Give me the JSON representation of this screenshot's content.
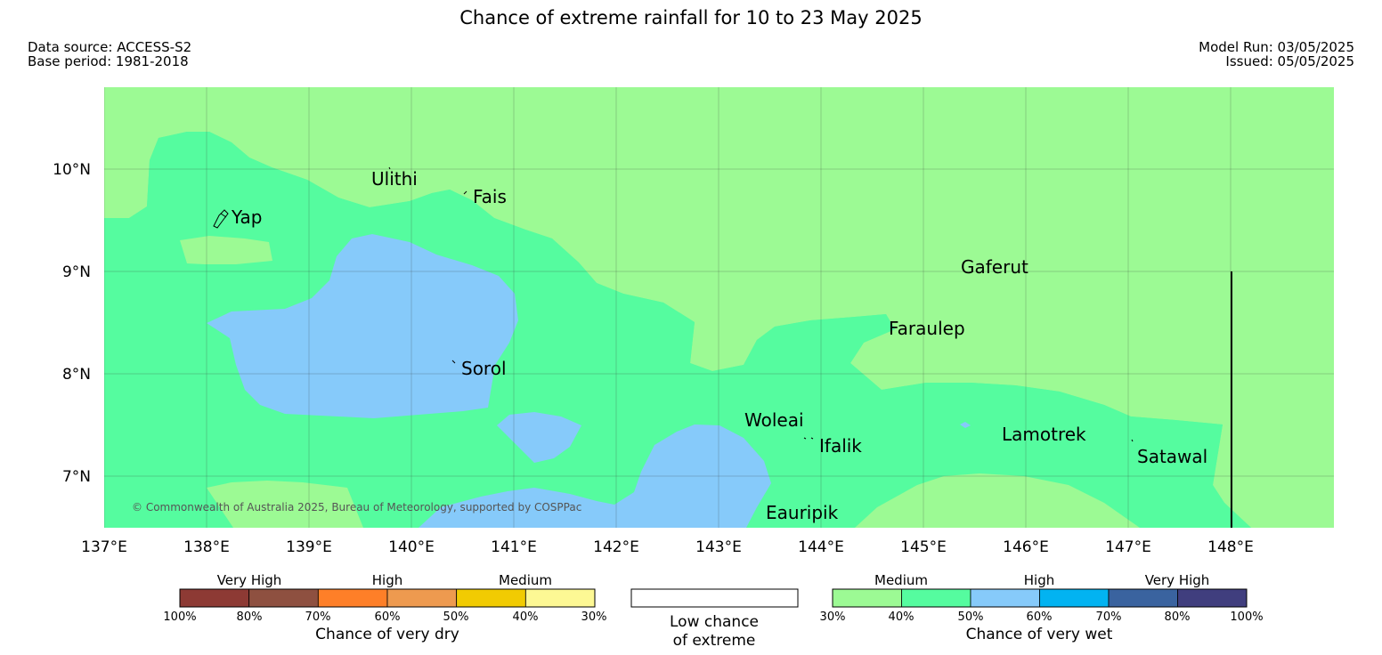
{
  "header": {
    "title": "Chance of extreme rainfall for 10 to 23 May 2025",
    "data_source": "Data source: ACCESS-S2",
    "base_period": "Base period: 1981-2018",
    "model_run": "Model Run: 03/05/2025",
    "issued": "Issued: 05/05/2025"
  },
  "map": {
    "lat_labels": [
      "10°N",
      "9°N",
      "8°N",
      "7°N"
    ],
    "lon_labels": [
      "137°E",
      "138°E",
      "139°E",
      "140°E",
      "141°E",
      "142°E",
      "143°E",
      "144°E",
      "145°E",
      "146°E",
      "147°E",
      "148°E"
    ],
    "places": [
      "Ulithi",
      "Fais",
      "Yap",
      "Gaferut",
      "Faraulep",
      "Sorol",
      "Woleai",
      "Ifalik",
      "Lamotrek",
      "Satawal",
      "Eauripik"
    ],
    "copyright": "© Commonwealth of Australia 2025, Bureau of Meteorology, supported by COSPPac",
    "fill_colors": {
      "wet_30_40": "#9cfa94",
      "wet_40_50": "#55fc9f",
      "wet_50_60": "#86cafa"
    }
  },
  "legend": {
    "dry": {
      "categories": [
        "Very High",
        "High",
        "Medium"
      ],
      "ticks": [
        "100%",
        "80%",
        "70%",
        "60%",
        "50%",
        "40%",
        "30%"
      ],
      "title": "Chance of very dry",
      "colors": [
        "#8d3a34",
        "#8e5040",
        "#fe7f28",
        "#ee9a4f",
        "#f1cb02",
        "#fdf894"
      ]
    },
    "neutral": {
      "line1": "Low chance",
      "line2": "of extreme"
    },
    "wet": {
      "categories": [
        "Medium",
        "High",
        "Very High"
      ],
      "ticks": [
        "30%",
        "40%",
        "50%",
        "60%",
        "70%",
        "80%",
        "100%"
      ],
      "title": "Chance of very wet",
      "colors": [
        "#9cfa94",
        "#55fc9f",
        "#86cafa",
        "#02b3f1",
        "#3a639f",
        "#403e7e"
      ]
    }
  }
}
